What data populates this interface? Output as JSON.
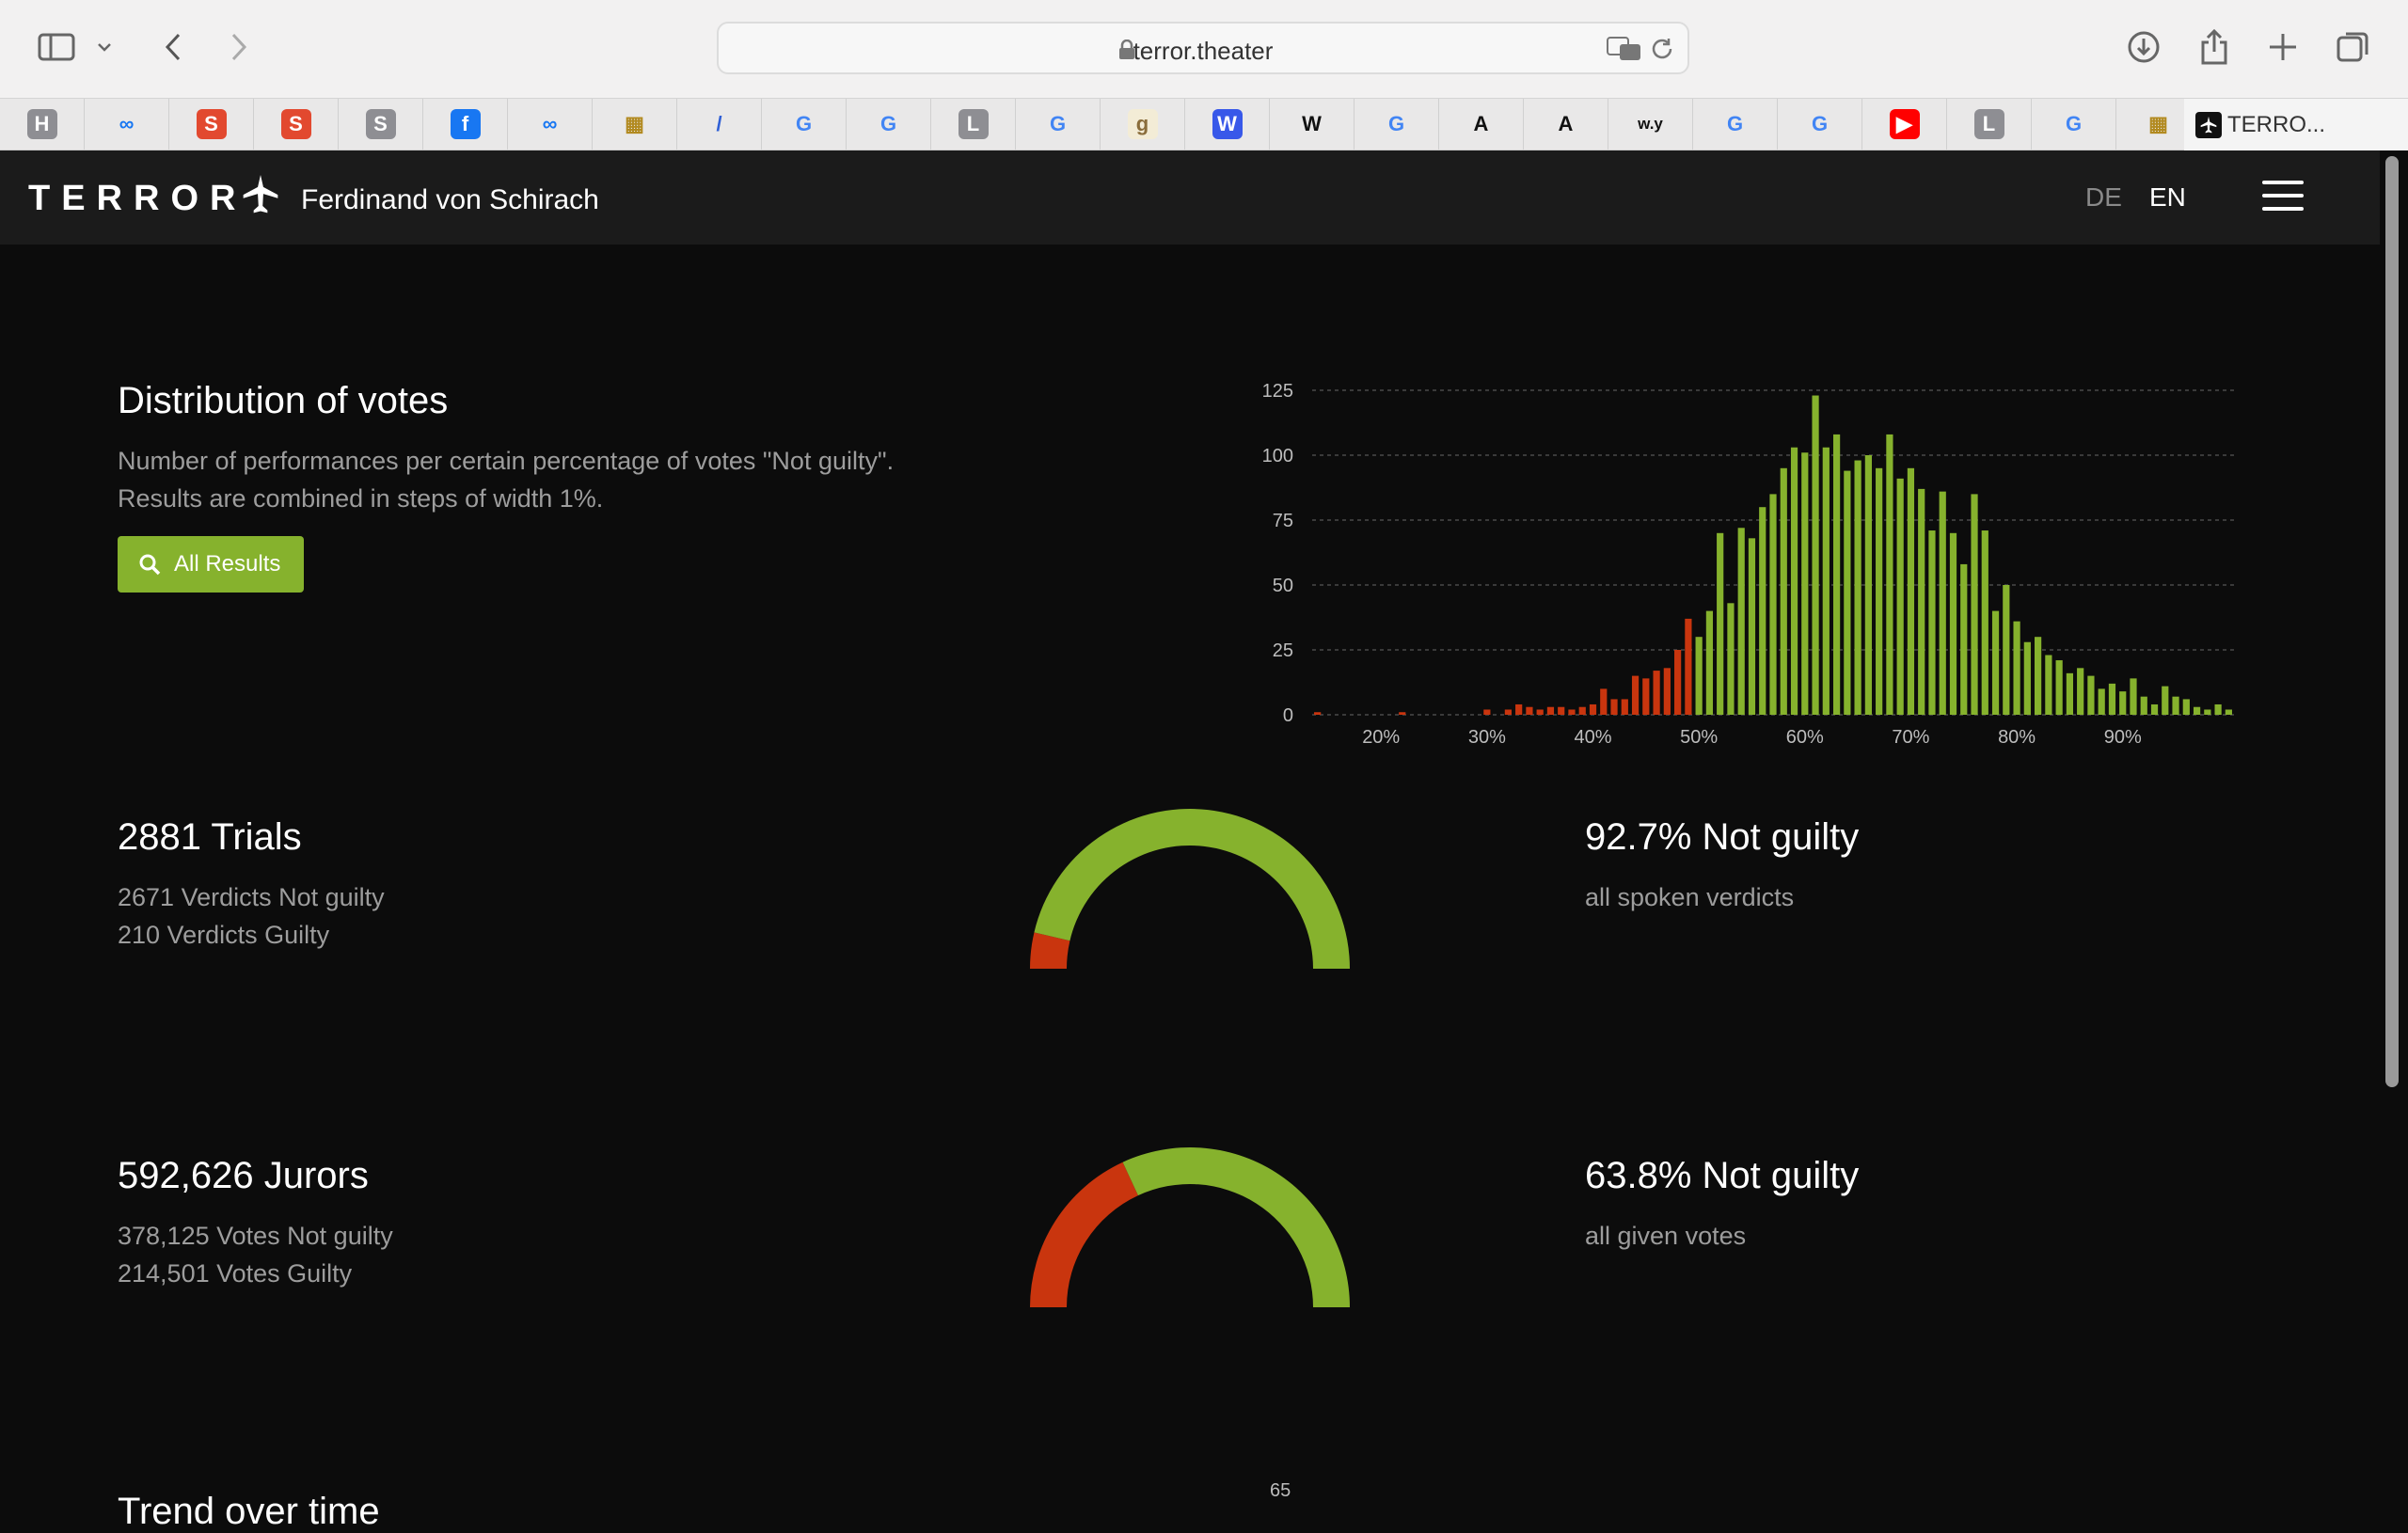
{
  "browser": {
    "url": "terror.theater",
    "active_tab_title": "TERRO...",
    "bookmarks": [
      {
        "label": "H",
        "bg": "#8e8e93",
        "fg": "#ffffff"
      },
      {
        "label": "∞",
        "bg": "transparent",
        "fg": "#1877f2"
      },
      {
        "label": "S",
        "bg": "#e2492f",
        "fg": "#ffffff"
      },
      {
        "label": "S",
        "bg": "#e2492f",
        "fg": "#ffffff"
      },
      {
        "label": "S",
        "bg": "#8e8e93",
        "fg": "#ffffff"
      },
      {
        "label": "f",
        "bg": "#1877f2",
        "fg": "#ffffff"
      },
      {
        "label": "∞",
        "bg": "transparent",
        "fg": "#1877f2"
      },
      {
        "label": "▦",
        "bg": "transparent",
        "fg": "#b28a20"
      },
      {
        "label": "/",
        "bg": "transparent",
        "fg": "#2f5fd6"
      },
      {
        "label": "G",
        "bg": "transparent",
        "fg": "#4285f4"
      },
      {
        "label": "G",
        "bg": "transparent",
        "fg": "#4285f4"
      },
      {
        "label": "L",
        "bg": "#8e8e93",
        "fg": "#ffffff"
      },
      {
        "label": "G",
        "bg": "transparent",
        "fg": "#4285f4"
      },
      {
        "label": "g",
        "bg": "#f3ecd6",
        "fg": "#8a6d3b"
      },
      {
        "label": "W",
        "bg": "#3858e9",
        "fg": "#ffffff"
      },
      {
        "label": "W",
        "bg": "transparent",
        "fg": "#111111"
      },
      {
        "label": "G",
        "bg": "transparent",
        "fg": "#4285f4"
      },
      {
        "label": "A",
        "bg": "transparent",
        "fg": "#111111"
      },
      {
        "label": "A",
        "bg": "transparent",
        "fg": "#111111"
      },
      {
        "label": "w.y",
        "bg": "transparent",
        "fg": "#111111"
      },
      {
        "label": "G",
        "bg": "transparent",
        "fg": "#4285f4"
      },
      {
        "label": "G",
        "bg": "transparent",
        "fg": "#4285f4"
      },
      {
        "label": "▶",
        "bg": "#ff0000",
        "fg": "#ffffff"
      },
      {
        "label": "L",
        "bg": "#8e8e93",
        "fg": "#ffffff"
      },
      {
        "label": "G",
        "bg": "transparent",
        "fg": "#4285f4"
      },
      {
        "label": "▦",
        "bg": "transparent",
        "fg": "#b28a20"
      }
    ]
  },
  "site": {
    "logo": "TERROR",
    "author": "Ferdinand von Schirach",
    "lang_de": "DE",
    "lang_en": "EN"
  },
  "colors": {
    "not_guilty": "#86b22d",
    "guilty": "#c9350e"
  },
  "distribution": {
    "title": "Distribution of votes",
    "description_line1": "Number of performances per certain percentage of votes \"Not guilty\".",
    "description_line2": "Results are combined in steps of width 1%.",
    "button_label": "All Results"
  },
  "chart_data": {
    "type": "bar",
    "xlabel": "",
    "ylabel": "",
    "ylim": [
      0,
      125
    ],
    "y_ticks": [
      0,
      25,
      50,
      75,
      100,
      125
    ],
    "x_ticks": [
      20,
      30,
      40,
      50,
      60,
      70,
      80,
      90
    ],
    "x_tick_labels": [
      "20%",
      "30%",
      "40%",
      "50%",
      "60%",
      "70%",
      "80%",
      "90%"
    ],
    "grid": true,
    "legend": "none",
    "x_start": 14,
    "guilty_threshold": 50,
    "values": [
      1,
      0,
      0,
      0,
      0,
      0,
      0,
      0,
      1,
      0,
      0,
      0,
      0,
      0,
      0,
      0,
      2,
      0,
      2,
      4,
      3,
      2,
      3,
      3,
      2,
      3,
      4,
      10,
      6,
      6,
      15,
      14,
      17,
      18,
      25,
      37,
      30,
      40,
      70,
      43,
      72,
      68,
      80,
      85,
      95,
      103,
      101,
      123,
      103,
      108,
      94,
      98,
      100,
      95,
      108,
      91,
      95,
      87,
      71,
      86,
      70,
      58,
      85,
      71,
      40,
      50,
      36,
      28,
      30,
      23,
      21,
      16,
      18,
      15,
      10,
      12,
      9,
      14,
      7,
      4,
      11,
      7,
      6,
      3,
      2,
      4,
      2
    ],
    "annotations": []
  },
  "trials": {
    "title": "2881 Trials",
    "line1": "2671 Verdicts Not guilty",
    "line2": "210 Verdicts Guilty",
    "percent_title": "92.7% Not guilty",
    "percent_sub": "all spoken verdicts",
    "not_guilty_fraction": 0.927
  },
  "jurors": {
    "title": "592,626 Jurors",
    "line1": "378,125 Votes Not guilty",
    "line2": "214,501 Votes Guilty",
    "percent_title": "63.8% Not guilty",
    "percent_sub": "all given votes",
    "not_guilty_fraction": 0.638
  },
  "next_section": {
    "title": "Trend over time",
    "axis_top_label": "65"
  }
}
